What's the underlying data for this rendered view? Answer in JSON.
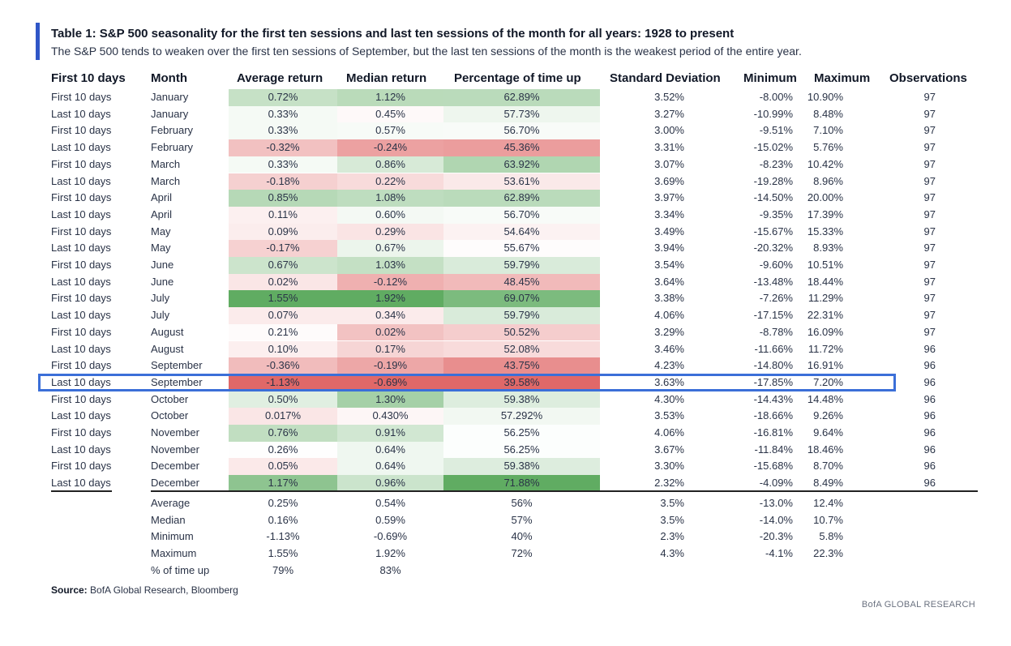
{
  "title": "Table 1: S&P 500 seasonality for the first ten sessions and last ten sessions of the month for all years: 1928 to present",
  "subtitle": "The S&P 500 tends to weaken over the first ten sessions of September, but the last ten sessions of the month is the weakest period of the entire year.",
  "headers": {
    "period": "First 10 days",
    "month": "Month",
    "avg": "Average return",
    "med": "Median return",
    "pct": "Percentage of time up",
    "sd": "Standard Deviation",
    "min": "Minimum",
    "max": "Maximum",
    "obs": "Observations"
  },
  "rows": [
    {
      "period": "First 10 days",
      "month": "January",
      "avg": "0.72%",
      "med": "1.12%",
      "pct": "62.89%",
      "sd": "3.52%",
      "min": "-8.00%",
      "max": "10.90%",
      "obs": "97"
    },
    {
      "period": "Last 10 days",
      "month": "January",
      "avg": "0.33%",
      "med": "0.45%",
      "pct": "57.73%",
      "sd": "3.27%",
      "min": "-10.99%",
      "max": "8.48%",
      "obs": "97"
    },
    {
      "period": "First 10 days",
      "month": "February",
      "avg": "0.33%",
      "med": "0.57%",
      "pct": "56.70%",
      "sd": "3.00%",
      "min": "-9.51%",
      "max": "7.10%",
      "obs": "97"
    },
    {
      "period": "Last 10 days",
      "month": "February",
      "avg": "-0.32%",
      "med": "-0.24%",
      "pct": "45.36%",
      "sd": "3.31%",
      "min": "-15.02%",
      "max": "5.76%",
      "obs": "97"
    },
    {
      "period": "First 10 days",
      "month": "March",
      "avg": "0.33%",
      "med": "0.86%",
      "pct": "63.92%",
      "sd": "3.07%",
      "min": "-8.23%",
      "max": "10.42%",
      "obs": "97"
    },
    {
      "period": "Last 10 days",
      "month": "March",
      "avg": "-0.18%",
      "med": "0.22%",
      "pct": "53.61%",
      "sd": "3.69%",
      "min": "-19.28%",
      "max": "8.96%",
      "obs": "97"
    },
    {
      "period": "First 10 days",
      "month": "April",
      "avg": "0.85%",
      "med": "1.08%",
      "pct": "62.89%",
      "sd": "3.97%",
      "min": "-14.50%",
      "max": "20.00%",
      "obs": "97"
    },
    {
      "period": "Last 10 days",
      "month": "April",
      "avg": "0.11%",
      "med": "0.60%",
      "pct": "56.70%",
      "sd": "3.34%",
      "min": "-9.35%",
      "max": "17.39%",
      "obs": "97"
    },
    {
      "period": "First 10 days",
      "month": "May",
      "avg": "0.09%",
      "med": "0.29%",
      "pct": "54.64%",
      "sd": "3.49%",
      "min": "-15.67%",
      "max": "15.33%",
      "obs": "97"
    },
    {
      "period": "Last 10 days",
      "month": "May",
      "avg": "-0.17%",
      "med": "0.67%",
      "pct": "55.67%",
      "sd": "3.94%",
      "min": "-20.32%",
      "max": "8.93%",
      "obs": "97"
    },
    {
      "period": "First 10 days",
      "month": "June",
      "avg": "0.67%",
      "med": "1.03%",
      "pct": "59.79%",
      "sd": "3.54%",
      "min": "-9.60%",
      "max": "10.51%",
      "obs": "97"
    },
    {
      "period": "Last 10 days",
      "month": "June",
      "avg": "0.02%",
      "med": "-0.12%",
      "pct": "48.45%",
      "sd": "3.64%",
      "min": "-13.48%",
      "max": "18.44%",
      "obs": "97"
    },
    {
      "period": "First 10 days",
      "month": "July",
      "avg": "1.55%",
      "med": "1.92%",
      "pct": "69.07%",
      "sd": "3.38%",
      "min": "-7.26%",
      "max": "11.29%",
      "obs": "97"
    },
    {
      "period": "Last 10 days",
      "month": "July",
      "avg": "0.07%",
      "med": "0.34%",
      "pct": "59.79%",
      "sd": "4.06%",
      "min": "-17.15%",
      "max": "22.31%",
      "obs": "97"
    },
    {
      "period": "First 10 days",
      "month": "August",
      "avg": "0.21%",
      "med": "0.02%",
      "pct": "50.52%",
      "sd": "3.29%",
      "min": "-8.78%",
      "max": "16.09%",
      "obs": "97"
    },
    {
      "period": "Last 10 days",
      "month": "August",
      "avg": "0.10%",
      "med": "0.17%",
      "pct": "52.08%",
      "sd": "3.46%",
      "min": "-11.66%",
      "max": "11.72%",
      "obs": "96"
    },
    {
      "period": "First 10 days",
      "month": "September",
      "avg": "-0.36%",
      "med": "-0.19%",
      "pct": "43.75%",
      "sd": "4.23%",
      "min": "-14.80%",
      "max": "16.91%",
      "obs": "96"
    },
    {
      "period": "Last 10 days",
      "month": "September",
      "avg": "-1.13%",
      "med": "-0.69%",
      "pct": "39.58%",
      "sd": "3.63%",
      "min": "-17.85%",
      "max": "7.20%",
      "obs": "96"
    },
    {
      "period": "First 10 days",
      "month": "October",
      "avg": "0.50%",
      "med": "1.30%",
      "pct": "59.38%",
      "sd": "4.30%",
      "min": "-14.43%",
      "max": "14.48%",
      "obs": "96"
    },
    {
      "period": "Last 10 days",
      "month": "October",
      "avg": "0.017%",
      "med": "0.430%",
      "pct": "57.292%",
      "sd": "3.53%",
      "min": "-18.66%",
      "max": "9.26%",
      "obs": "96"
    },
    {
      "period": "First 10 days",
      "month": "November",
      "avg": "0.76%",
      "med": "0.91%",
      "pct": "56.25%",
      "sd": "4.06%",
      "min": "-16.81%",
      "max": "9.64%",
      "obs": "96"
    },
    {
      "period": "Last 10 days",
      "month": "November",
      "avg": "0.26%",
      "med": "0.64%",
      "pct": "56.25%",
      "sd": "3.67%",
      "min": "-11.84%",
      "max": "18.46%",
      "obs": "96"
    },
    {
      "period": "First 10 days",
      "month": "December",
      "avg": "0.05%",
      "med": "0.64%",
      "pct": "59.38%",
      "sd": "3.30%",
      "min": "-15.68%",
      "max": "8.70%",
      "obs": "96"
    },
    {
      "period": "Last 10 days",
      "month": "December",
      "avg": "1.17%",
      "med": "0.96%",
      "pct": "71.88%",
      "sd": "2.32%",
      "min": "-4.09%",
      "max": "8.49%",
      "obs": "96"
    }
  ],
  "highlighted_row_index": 17,
  "summary": [
    {
      "label": "Average",
      "avg": "0.25%",
      "med": "0.54%",
      "pct": "56%",
      "sd": "3.5%",
      "min": "-13.0%",
      "max": "12.4%"
    },
    {
      "label": "Median",
      "avg": "0.16%",
      "med": "0.59%",
      "pct": "57%",
      "sd": "3.5%",
      "min": "-14.0%",
      "max": "10.7%"
    },
    {
      "label": "Minimum",
      "avg": "-1.13%",
      "med": "-0.69%",
      "pct": "40%",
      "sd": "2.3%",
      "min": "-20.3%",
      "max": "5.8%"
    },
    {
      "label": "Maximum",
      "avg": "1.55%",
      "med": "1.92%",
      "pct": "72%",
      "sd": "4.3%",
      "min": "-4.1%",
      "max": "22.3%"
    },
    {
      "label": "% of time up",
      "avg": "79%",
      "med": "83%",
      "pct": "",
      "sd": "",
      "min": "",
      "max": ""
    }
  ],
  "source_label": "Source:",
  "source_text": "BofA Global Research, Bloomberg",
  "brand": "BofA GLOBAL RESEARCH",
  "colors": {
    "accent_bar": "#2f56c7",
    "highlight_border": "#3b6fd8",
    "heat_red": "#e06666",
    "heat_green": "#57a85b"
  }
}
